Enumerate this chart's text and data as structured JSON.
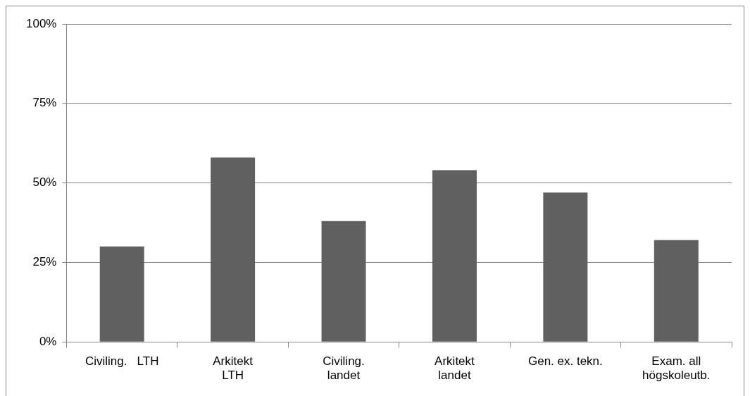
{
  "chart_data": {
    "type": "bar",
    "categories": [
      "Civiling.   LTH",
      "Arkitekt\nLTH",
      "Civiling.\nlandet",
      "Arkitekt\nlandet",
      "Gen. ex. tekn.",
      "Exam. all\nhögskoleutb."
    ],
    "values": [
      30,
      58,
      38,
      54,
      47,
      32
    ],
    "color": "#606060",
    "ylim": [
      0,
      100
    ],
    "yticks": [
      {
        "value": 0,
        "label": "0%"
      },
      {
        "value": 25,
        "label": "25%"
      },
      {
        "value": 50,
        "label": "50%"
      },
      {
        "value": 75,
        "label": "75%"
      },
      {
        "value": 100,
        "label": "100%"
      }
    ],
    "grid": "y",
    "legend": false
  }
}
